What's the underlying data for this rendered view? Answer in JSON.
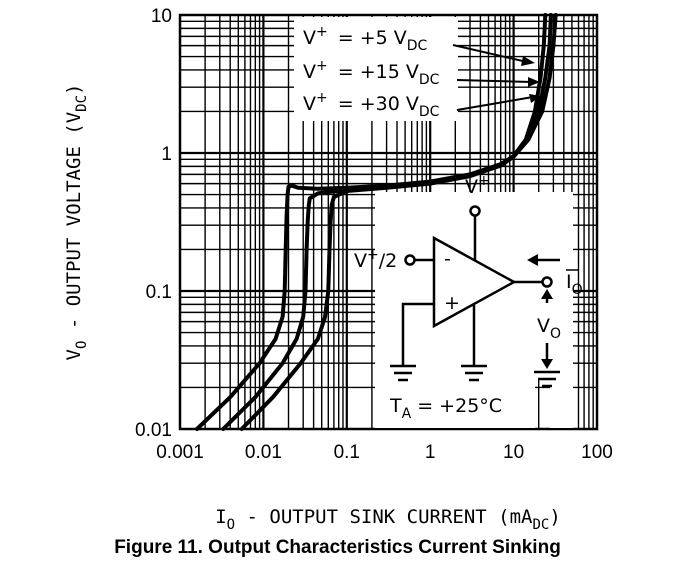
{
  "caption": "Figure 11. Output Characteristics Current Sinking",
  "chart_data": {
    "type": "line",
    "xscale": "log",
    "yscale": "log",
    "xlim": [
      0.001,
      100
    ],
    "ylim": [
      0.01,
      10
    ],
    "grid": true,
    "xlabel": {
      "main": "I",
      "sub": "O",
      "rest": " - OUTPUT SINK CURRENT (mA",
      "unit_sub": "DC",
      "close": ")"
    },
    "ylabel": {
      "main": "V",
      "sub": "O",
      "rest": " - OUTPUT VOLTAGE (V",
      "unit_sub": "DC",
      "close": ")"
    },
    "x_ticks": [
      {
        "value": 0.001,
        "label": "0.001"
      },
      {
        "value": 0.01,
        "label": "0.01"
      },
      {
        "value": 0.1,
        "label": "0.1"
      },
      {
        "value": 1,
        "label": "1"
      },
      {
        "value": 10,
        "label": "10"
      },
      {
        "value": 100,
        "label": "100"
      }
    ],
    "y_ticks": [
      {
        "value": 0.01,
        "label": "0.01"
      },
      {
        "value": 0.1,
        "label": "0.1"
      },
      {
        "value": 1,
        "label": "1"
      },
      {
        "value": 10,
        "label": "10"
      }
    ],
    "series": [
      {
        "label_parts": {
          "v": "V",
          "sup": "+",
          "eq": "= +5 V",
          "sub": "DC"
        },
        "x": [
          0.0016,
          0.004,
          0.009,
          0.014,
          0.017,
          0.018,
          0.0185,
          0.019,
          0.0195,
          0.02,
          0.022,
          0.026,
          0.045,
          0.1,
          0.3,
          1,
          3,
          7,
          10,
          14,
          18,
          21,
          23,
          24
        ],
        "y": [
          0.01,
          0.017,
          0.03,
          0.045,
          0.065,
          0.1,
          0.2,
          0.35,
          0.5,
          0.57,
          0.58,
          0.56,
          0.55,
          0.56,
          0.58,
          0.62,
          0.7,
          0.83,
          0.95,
          1.25,
          2.0,
          3.5,
          6.0,
          10.0
        ]
      },
      {
        "label_parts": {
          "v": "V",
          "sup": "+",
          "eq": "= +15 V",
          "sub": "DC"
        },
        "x": [
          0.0033,
          0.008,
          0.017,
          0.025,
          0.03,
          0.032,
          0.033,
          0.034,
          0.035,
          0.036,
          0.045,
          0.1,
          0.3,
          1,
          3,
          7,
          10,
          15,
          20,
          24,
          27,
          28
        ],
        "y": [
          0.01,
          0.017,
          0.03,
          0.045,
          0.065,
          0.1,
          0.2,
          0.32,
          0.42,
          0.47,
          0.51,
          0.54,
          0.57,
          0.61,
          0.69,
          0.82,
          0.95,
          1.25,
          2.0,
          3.5,
          6.0,
          10.0
        ]
      },
      {
        "label_parts": {
          "v": "V",
          "sup": "+",
          "eq": "= +30 V",
          "sub": "DC"
        },
        "x": [
          0.0055,
          0.013,
          0.028,
          0.045,
          0.055,
          0.06,
          0.062,
          0.064,
          0.066,
          0.07,
          0.1,
          0.3,
          1,
          3,
          7,
          10,
          15,
          22,
          27,
          30,
          32
        ],
        "y": [
          0.01,
          0.017,
          0.03,
          0.045,
          0.065,
          0.1,
          0.2,
          0.32,
          0.42,
          0.48,
          0.53,
          0.56,
          0.6,
          0.68,
          0.81,
          0.94,
          1.25,
          2.0,
          3.5,
          6.0,
          10.0
        ]
      }
    ],
    "inset": {
      "vplus": {
        "v": "V",
        "sup": "+"
      },
      "input": {
        "v": "V",
        "sup": "+",
        "rest": "/2"
      },
      "minus": "-",
      "plus": "+",
      "io": {
        "main": "I",
        "sub": "O"
      },
      "vo": {
        "main": "V",
        "sub": "O"
      },
      "ta": {
        "main": "T",
        "sub": "A",
        "rest": " = +25°C"
      }
    }
  }
}
